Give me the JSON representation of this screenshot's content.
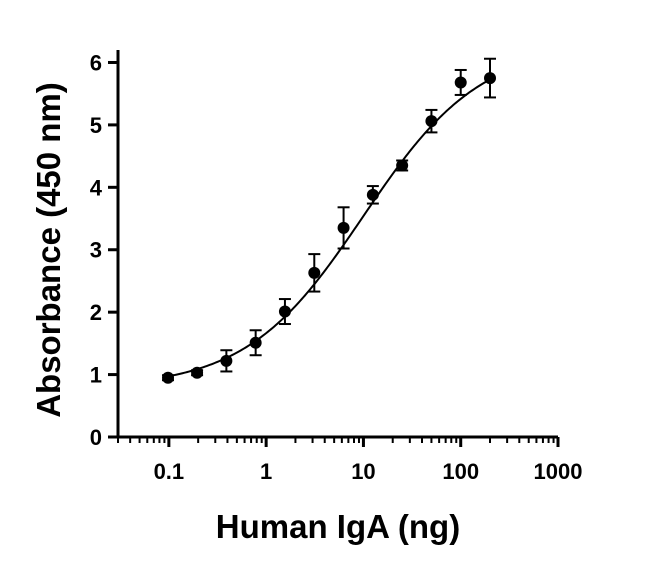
{
  "chart_data": {
    "type": "scatter",
    "title": "",
    "xlabel": "Human IgA (ng)",
    "ylabel": "Absorbance (450 nm)",
    "xscale": "log",
    "xlim": [
      0.03,
      1000
    ],
    "ylim": [
      0,
      6.2
    ],
    "xticks": [
      0.1,
      1,
      10,
      100,
      1000
    ],
    "xtick_labels": [
      "0.1",
      "1",
      "10",
      "100",
      "1000"
    ],
    "yticks": [
      0,
      1,
      2,
      3,
      4,
      5,
      6
    ],
    "ytick_labels": [
      "0",
      "1",
      "2",
      "3",
      "4",
      "5",
      "6"
    ],
    "series": [
      {
        "name": "Human IgA",
        "points": [
          {
            "x": 0.098,
            "y": 0.95,
            "err": 0.04
          },
          {
            "x": 0.195,
            "y": 1.03,
            "err": 0.04
          },
          {
            "x": 0.39,
            "y": 1.22,
            "err": 0.17
          },
          {
            "x": 0.78,
            "y": 1.51,
            "err": 0.2
          },
          {
            "x": 1.56,
            "y": 2.01,
            "err": 0.2
          },
          {
            "x": 3.125,
            "y": 2.63,
            "err": 0.3
          },
          {
            "x": 6.25,
            "y": 3.35,
            "err": 0.33
          },
          {
            "x": 12.5,
            "y": 3.88,
            "err": 0.14
          },
          {
            "x": 25,
            "y": 4.35,
            "err": 0.08
          },
          {
            "x": 50,
            "y": 5.06,
            "err": 0.18
          },
          {
            "x": 100,
            "y": 5.68,
            "err": 0.2
          },
          {
            "x": 200,
            "y": 5.75,
            "err": 0.31
          }
        ],
        "fit": {
          "type": "4PL",
          "bottom": 0.78,
          "top": 6.3,
          "ec50": 10,
          "hill": 0.72
        }
      }
    ]
  }
}
